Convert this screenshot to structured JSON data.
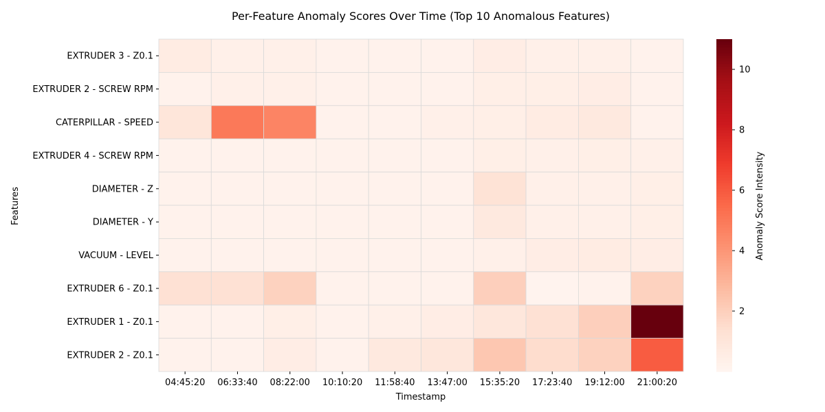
{
  "chart_data": {
    "type": "heatmap",
    "title": "Per-Feature Anomaly Scores Over Time (Top 10 Anomalous Features)",
    "xlabel": "Timestamp",
    "ylabel": "Features",
    "colorbar_label": "Anomaly Score Intensity",
    "colormap": "Reds",
    "vmin": 0,
    "vmax": 11,
    "colorbar_ticks": [
      2,
      4,
      6,
      8,
      10
    ],
    "x": [
      "04:45:20",
      "06:33:40",
      "08:22:00",
      "10:10:20",
      "11:58:40",
      "13:47:00",
      "15:35:20",
      "17:23:40",
      "19:12:00",
      "21:00:20"
    ],
    "y": [
      "EXTRUDER 3 - Z0.1",
      "EXTRUDER 2 - SCREW RPM",
      "CATERPILLAR - SPEED",
      "EXTRUDER 4 - SCREW RPM",
      "DIAMETER - Z",
      "DIAMETER - Y",
      "VACUUM - LEVEL",
      "EXTRUDER 6 - Z0.1",
      "EXTRUDER 1 - Z0.1",
      "EXTRUDER 2 - Z0.1"
    ],
    "values": [
      [
        0.6,
        0.3,
        0.3,
        0.2,
        0.2,
        0.2,
        0.5,
        0.3,
        0.3,
        0.2
      ],
      [
        0.2,
        0.3,
        0.3,
        0.2,
        0.2,
        0.2,
        0.4,
        0.4,
        0.5,
        0.2
      ],
      [
        1.0,
        5.0,
        4.6,
        0.2,
        0.2,
        0.3,
        0.4,
        0.6,
        0.8,
        0.2
      ],
      [
        0.2,
        0.2,
        0.2,
        0.2,
        0.2,
        0.2,
        0.4,
        0.3,
        0.4,
        0.3
      ],
      [
        0.2,
        0.2,
        0.2,
        0.2,
        0.2,
        0.2,
        1.2,
        0.3,
        0.3,
        0.4
      ],
      [
        0.2,
        0.2,
        0.2,
        0.2,
        0.2,
        0.2,
        0.8,
        0.3,
        0.3,
        0.4
      ],
      [
        0.2,
        0.2,
        0.2,
        0.2,
        0.2,
        0.2,
        0.3,
        0.5,
        0.6,
        0.5
      ],
      [
        1.3,
        1.3,
        1.9,
        0.2,
        0.2,
        0.2,
        2.0,
        0.1,
        0.2,
        1.9
      ],
      [
        0.2,
        0.2,
        0.4,
        0.2,
        0.3,
        0.5,
        0.9,
        1.3,
        2.0,
        11.0
      ],
      [
        0.2,
        0.2,
        0.5,
        0.2,
        0.8,
        0.9,
        2.3,
        1.5,
        1.9,
        5.9
      ]
    ]
  }
}
